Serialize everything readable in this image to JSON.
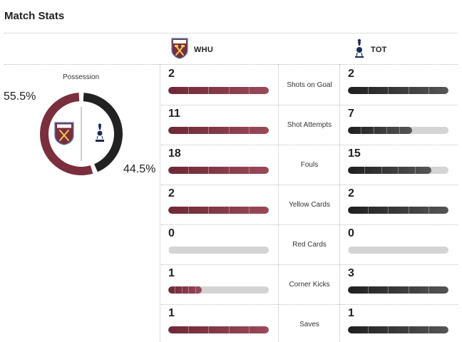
{
  "title": "Match Stats",
  "home": {
    "abbr": "WHU",
    "color": "#7a2e3e",
    "logo": "west-ham-crest"
  },
  "away": {
    "abbr": "TOT",
    "color": "#222222",
    "logo": "tottenham-crest"
  },
  "possession": {
    "label": "Possession",
    "home_text": "55.5%",
    "away_text": "44.5%",
    "home": 55.5,
    "away": 44.5
  },
  "stats": [
    {
      "label": "Shots on Goal",
      "home": "2",
      "away": "2",
      "home_fill": 1.0,
      "away_fill": 1.0
    },
    {
      "label": "Shot Attempts",
      "home": "11",
      "away": "7",
      "home_fill": 1.0,
      "away_fill": 0.636
    },
    {
      "label": "Fouls",
      "home": "18",
      "away": "15",
      "home_fill": 1.0,
      "away_fill": 0.833
    },
    {
      "label": "Yellow Cards",
      "home": "2",
      "away": "2",
      "home_fill": 1.0,
      "away_fill": 1.0
    },
    {
      "label": "Red Cards",
      "home": "0",
      "away": "0",
      "home_fill": 0,
      "away_fill": 0
    },
    {
      "label": "Corner Kicks",
      "home": "1",
      "away": "3",
      "home_fill": 0.333,
      "away_fill": 1.0
    },
    {
      "label": "Saves",
      "home": "1",
      "away": "1",
      "home_fill": 1.0,
      "away_fill": 1.0
    }
  ]
}
